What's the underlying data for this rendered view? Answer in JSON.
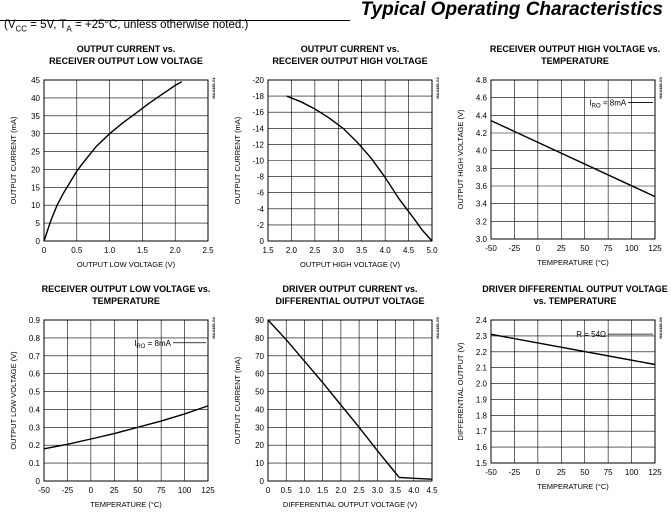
{
  "header": {
    "title": "Typical Operating Characteristics",
    "conditions": {
      "vcc_label": "V",
      "vcc_sub": "CC",
      "vcc_value": " = 5V, T",
      "ta_sub": "A",
      "tail": " = +25°C, unless otherwise noted.)",
      "open": "("
    }
  },
  "chart_data": [
    {
      "type": "line",
      "title": [
        "OUTPUT CURRENT vs.",
        "RECEIVER OUTPUT LOW VOLTAGE"
      ],
      "xlabel": "OUTPUT LOW VOLTAGE (V)",
      "ylabel": "OUTPUT CURRENT (mA)",
      "xlim": [
        0,
        2.5
      ],
      "ylim": [
        0,
        45
      ],
      "xticks": [
        "0",
        "0.5",
        "1.0",
        "1.5",
        "2.0",
        "2.5"
      ],
      "xtickvals": [
        0,
        0.5,
        1.0,
        1.5,
        2.0,
        2.5
      ],
      "yticks": [
        "0",
        "5",
        "10",
        "15",
        "20",
        "25",
        "30",
        "35",
        "40",
        "45"
      ],
      "ytickvals": [
        0,
        5,
        10,
        15,
        20,
        25,
        30,
        35,
        40,
        45
      ],
      "x": [
        0,
        0.1,
        0.2,
        0.3,
        0.4,
        0.5,
        0.6,
        0.8,
        1.0,
        1.2,
        1.4,
        1.6,
        1.8,
        2.0,
        2.1
      ],
      "y": [
        0,
        5.5,
        10,
        13.5,
        16.5,
        19.5,
        22,
        26.5,
        30,
        33,
        35.7,
        38.5,
        41,
        43.5,
        44.5
      ],
      "code": "MAX481-01"
    },
    {
      "type": "line",
      "title": [
        "OUTPUT CURRENT vs.",
        "RECEIVER OUTPUT HIGH VOLTAGE"
      ],
      "xlabel": "OUTPUT HIGH VOLTAGE (V)",
      "ylabel": "OUTPUT CURRENT (mA)",
      "xlim": [
        1.5,
        5.0
      ],
      "ylim": [
        0,
        -20
      ],
      "xticks": [
        "1.5",
        "2.0",
        "2.5",
        "3.0",
        "3.5",
        "4.0",
        "4.5",
        "5.0"
      ],
      "xtickvals": [
        1.5,
        2.0,
        2.5,
        3.0,
        3.5,
        4.0,
        4.5,
        5.0
      ],
      "yticks": [
        "0",
        "-2",
        "-4",
        "-6",
        "-8",
        "-10",
        "-12",
        "-14",
        "-16",
        "-18",
        "-20"
      ],
      "ytickvals": [
        0,
        -2,
        -4,
        -6,
        -8,
        -10,
        -12,
        -14,
        -16,
        -18,
        -20
      ],
      "x": [
        1.9,
        2.2,
        2.5,
        2.8,
        3.1,
        3.4,
        3.7,
        4.0,
        4.3,
        4.6,
        4.8,
        5.0
      ],
      "y": [
        -18,
        -17.3,
        -16.4,
        -15.3,
        -14,
        -12.3,
        -10.3,
        -7.9,
        -5.2,
        -2.9,
        -1.3,
        0
      ],
      "code": "MAX481-02"
    },
    {
      "type": "line",
      "title": [
        "RECEIVER OUTPUT HIGH VOLTAGE vs.",
        "TEMPERATURE"
      ],
      "xlabel": "TEMPERATURE (°C)",
      "ylabel": "OUTPUT HIGH VOLTAGE (V)",
      "xlim": [
        -50,
        125
      ],
      "ylim": [
        3.0,
        4.8
      ],
      "xticks": [
        "-50",
        "-25",
        "0",
        "25",
        "50",
        "75",
        "100",
        "125"
      ],
      "xtickvals": [
        -50,
        -25,
        0,
        25,
        50,
        75,
        100,
        125
      ],
      "yticks": [
        "3.0",
        "3.2",
        "3.4",
        "3.6",
        "3.8",
        "4.0",
        "4.2",
        "4.4",
        "4.6",
        "4.8"
      ],
      "ytickvals": [
        3.0,
        3.2,
        3.4,
        3.6,
        3.8,
        4.0,
        4.2,
        4.4,
        4.6,
        4.8
      ],
      "x": [
        -50,
        125
      ],
      "y": [
        4.34,
        3.48
      ],
      "annotation": {
        "main": "I",
        "sub": "RO",
        "tail": " = 8mA"
      },
      "code": "MAX481-03"
    },
    {
      "type": "line",
      "title": [
        "RECEIVER OUTPUT LOW VOLTAGE vs.",
        "TEMPERATURE"
      ],
      "xlabel": "TEMPERATURE (°C)",
      "ylabel": "OUTPUT LOW VOLTAGE (V)",
      "xlim": [
        -50,
        125
      ],
      "ylim": [
        0,
        0.9
      ],
      "xticks": [
        "-50",
        "-25",
        "0",
        "25",
        "50",
        "75",
        "100",
        "125"
      ],
      "xtickvals": [
        -50,
        -25,
        0,
        25,
        50,
        75,
        100,
        125
      ],
      "yticks": [
        "0",
        "0.1",
        "0.2",
        "0.3",
        "0.4",
        "0.5",
        "0.6",
        "0.7",
        "0.8",
        "0.9"
      ],
      "ytickvals": [
        0,
        0.1,
        0.2,
        0.3,
        0.4,
        0.5,
        0.6,
        0.7,
        0.8,
        0.9
      ],
      "x": [
        -50,
        -25,
        0,
        25,
        50,
        75,
        100,
        125
      ],
      "y": [
        0.18,
        0.205,
        0.235,
        0.265,
        0.3,
        0.335,
        0.375,
        0.42
      ],
      "annotation": {
        "main": "I",
        "sub": "RO",
        "tail": " = 8mA"
      },
      "code": "MAX481-04"
    },
    {
      "type": "line",
      "title": [
        "DRIVER OUTPUT CURRENT vs.",
        "DIFFERENTIAL OUTPUT VOLTAGE"
      ],
      "xlabel": "DIFFERENTIAL OUTPUT VOLTAGE (V)",
      "ylabel": "OUTPUT CURRENT (mA)",
      "xlim": [
        0,
        4.5
      ],
      "ylim": [
        0,
        90
      ],
      "xticks": [
        "0",
        "0.5",
        "1.0",
        "1.5",
        "2.0",
        "2.5",
        "3.0",
        "3.5",
        "4.0",
        "4.5"
      ],
      "xtickvals": [
        0,
        0.5,
        1.0,
        1.5,
        2.0,
        2.5,
        3.0,
        3.5,
        4.0,
        4.5
      ],
      "yticks": [
        "0",
        "10",
        "20",
        "30",
        "40",
        "50",
        "60",
        "70",
        "80",
        "90"
      ],
      "ytickvals": [
        0,
        10,
        20,
        30,
        40,
        50,
        60,
        70,
        80,
        90
      ],
      "x": [
        0,
        0.5,
        1.0,
        1.5,
        2.0,
        2.5,
        3.0,
        3.4,
        3.6,
        4.0,
        4.5
      ],
      "y": [
        90,
        79,
        67,
        55,
        42.5,
        30,
        17,
        7,
        2,
        1.5,
        1
      ],
      "code": "MAX481-05"
    },
    {
      "type": "line",
      "title": [
        "DRIVER DIFFERENTIAL OUTPUT VOLTAGE",
        "vs. TEMPERATURE"
      ],
      "xlabel": "TEMPERATURE (°C)",
      "ylabel": "DIFFERENTIAL OUTPUT (V)",
      "xlim": [
        -50,
        125
      ],
      "ylim": [
        1.5,
        2.4
      ],
      "xticks": [
        "-50",
        "-25",
        "0",
        "25",
        "50",
        "75",
        "100",
        "125"
      ],
      "xtickvals": [
        -50,
        -25,
        0,
        25,
        50,
        75,
        100,
        125
      ],
      "yticks": [
        "1.5",
        "1.6",
        "1.7",
        "1.8",
        "1.9",
        "2.0",
        "2.1",
        "2.2",
        "2.3",
        "2.4"
      ],
      "ytickvals": [
        1.5,
        1.6,
        1.7,
        1.8,
        1.9,
        2.0,
        2.1,
        2.2,
        2.3,
        2.4
      ],
      "x": [
        -50,
        125
      ],
      "y": [
        2.31,
        2.12
      ],
      "annotation": {
        "main": "R = 54Ω",
        "sub": "",
        "tail": ""
      },
      "code": "MAX481-06"
    }
  ]
}
